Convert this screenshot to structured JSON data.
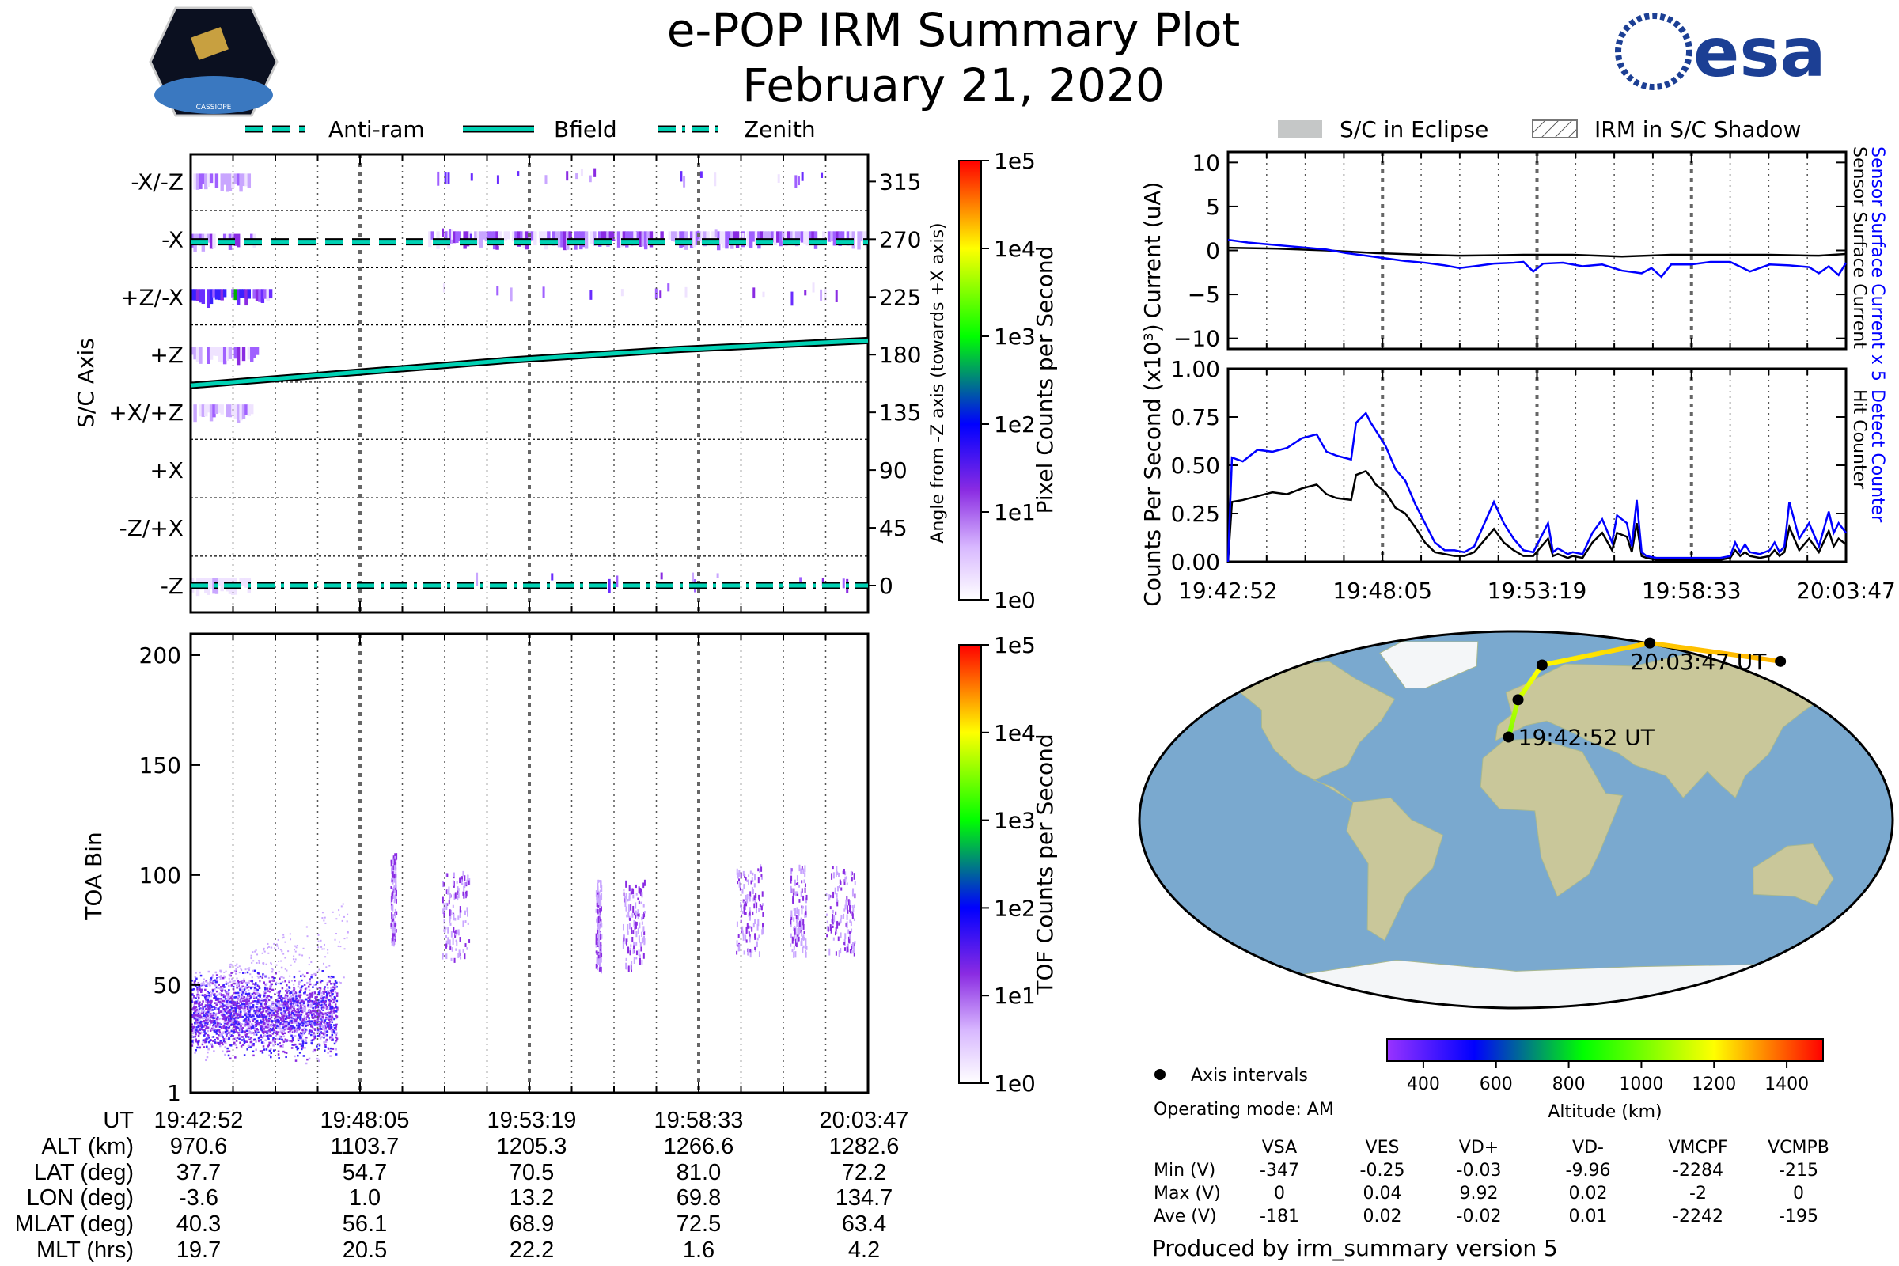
{
  "header": {
    "title": "e-POP IRM Summary Plot",
    "date": "February 21, 2020",
    "left_logo": "CASSIOPE",
    "right_logo": "esa"
  },
  "colors": {
    "antiram": "#00d2b4",
    "bfield": "#00d2b4",
    "detect": "#0000ff",
    "hit": "#000000",
    "track_start": "#7fff00",
    "track_end": "#ffa500",
    "ocean": "#7aa9cf",
    "land": "#c9c79a"
  },
  "legend_left": [
    {
      "label": "Anti-ram",
      "style": "dashed"
    },
    {
      "label": "Bfield",
      "style": "solid"
    },
    {
      "label": "Zenith",
      "style": "dashdot"
    }
  ],
  "legend_right": [
    {
      "label": "S/C in Eclipse",
      "style": "filled-gray"
    },
    {
      "label": "IRM in S/C Shadow",
      "style": "hatched"
    }
  ],
  "chart_data": [
    {
      "type": "heatmap",
      "name": "pixel-spectrogram",
      "ylabel": "S/C Axis",
      "y2label": "Angle from -Z axis (towards +X axis)",
      "ylim": [
        -15,
        330
      ],
      "categories": [
        "-X/-Z",
        "-X",
        "+Z/-X",
        "+Z",
        "+X/+Z",
        "+X",
        "-Z/+X",
        "-Z"
      ],
      "angles": [
        315,
        270,
        225,
        180,
        135,
        90,
        45,
        0
      ],
      "colorbar": {
        "label": "Pixel Counts per Second",
        "ticks": [
          "1e5",
          "1e4",
          "1e3",
          "1e2",
          "1e1",
          "1e0"
        ],
        "scale": "log",
        "range": [
          1,
          100000
        ]
      },
      "lines": {
        "antiram": {
          "t": [
            0,
            1255
          ],
          "angle": [
            268,
            268
          ]
        },
        "bfield": {
          "t": [
            0,
            300,
            600,
            900,
            1255
          ],
          "angle": [
            156,
            166,
            176,
            184,
            191
          ]
        },
        "zenith": {
          "t": [
            0,
            1255
          ],
          "angle": [
            0,
            0
          ]
        }
      }
    },
    {
      "type": "heatmap",
      "name": "tof-spectrogram",
      "ylabel": "TOA Bin",
      "ylim": [
        1,
        210
      ],
      "yticks": [
        1,
        50,
        100,
        150,
        200
      ],
      "colorbar": {
        "label": "TOF Counts per Second",
        "ticks": [
          "1e5",
          "1e4",
          "1e3",
          "1e2",
          "1e1",
          "1e0"
        ],
        "scale": "log",
        "range": [
          1,
          100000
        ]
      }
    },
    {
      "type": "line",
      "name": "current",
      "ylabel": "Current (uA)",
      "ylim": [
        -11.2,
        11.2
      ],
      "yticks": [
        "10",
        "5",
        "0",
        "−5",
        "−10"
      ],
      "yvals": [
        10,
        5,
        0,
        -5,
        -10
      ],
      "series": [
        {
          "name": "Sensor Surface Current x 5",
          "color": "#0000ff",
          "t": [
            0,
            40,
            80,
            120,
            160,
            200,
            240,
            280,
            320,
            360,
            400,
            440,
            470,
            500,
            540,
            580,
            600,
            620,
            640,
            680,
            720,
            760,
            800,
            840,
            860,
            880,
            900,
            940,
            980,
            1000,
            1020,
            1060,
            1100,
            1140,
            1180,
            1200,
            1220,
            1240,
            1255
          ],
          "v": [
            1.2,
            0.9,
            0.7,
            0.5,
            0.3,
            0.1,
            -0.3,
            -0.6,
            -0.9,
            -1.2,
            -1.4,
            -1.7,
            -2.0,
            -1.8,
            -1.5,
            -1.4,
            -1.3,
            -2.4,
            -1.5,
            -1.4,
            -1.8,
            -1.6,
            -2.3,
            -2.6,
            -2.0,
            -3.0,
            -1.6,
            -1.6,
            -1.3,
            -1.3,
            -1.3,
            -2.4,
            -1.6,
            -1.7,
            -1.9,
            -2.6,
            -1.8,
            -2.8,
            -1.4
          ]
        },
        {
          "name": "Sensor Surface Current",
          "color": "#000000",
          "t": [
            0,
            100,
            200,
            300,
            400,
            470,
            600,
            700,
            800,
            900,
            1000,
            1100,
            1200,
            1255
          ],
          "v": [
            0.3,
            0.2,
            0.0,
            -0.3,
            -0.5,
            -0.6,
            -0.5,
            -0.5,
            -0.7,
            -0.5,
            -0.5,
            -0.5,
            -0.6,
            -0.4
          ]
        }
      ]
    },
    {
      "type": "line",
      "name": "counts",
      "ylabel": "Counts Per Second (x10³)",
      "ylim": [
        0,
        1
      ],
      "yticks": [
        "1.00",
        "0.75",
        "0.50",
        "0.25",
        "0.00"
      ],
      "yvals": [
        1,
        0.75,
        0.5,
        0.25,
        0
      ],
      "xticks": [
        "19:42:52",
        "19:48:05",
        "19:53:19",
        "19:58:33",
        "20:03:47"
      ],
      "series": [
        {
          "name": "Detect Counter",
          "color": "#0000ff",
          "t": [
            0,
            8,
            30,
            60,
            90,
            120,
            150,
            180,
            200,
            220,
            250,
            260,
            280,
            290,
            300,
            320,
            340,
            360,
            380,
            400,
            420,
            440,
            460,
            480,
            500,
            540,
            560,
            580,
            600,
            620,
            650,
            660,
            670,
            690,
            700,
            720,
            740,
            760,
            780,
            790,
            810,
            820,
            830,
            840,
            850,
            870,
            880,
            900,
            940,
            980,
            1000,
            1020,
            1030,
            1040,
            1050,
            1060,
            1080,
            1100,
            1110,
            1120,
            1130,
            1140,
            1160,
            1180,
            1200,
            1220,
            1230,
            1240,
            1255
          ],
          "v": [
            0,
            0.54,
            0.52,
            0.58,
            0.57,
            0.59,
            0.64,
            0.66,
            0.57,
            0.55,
            0.53,
            0.72,
            0.77,
            0.72,
            0.68,
            0.6,
            0.48,
            0.42,
            0.3,
            0.2,
            0.1,
            0.06,
            0.06,
            0.05,
            0.08,
            0.31,
            0.2,
            0.12,
            0.06,
            0.05,
            0.2,
            0.05,
            0.07,
            0.04,
            0.05,
            0.04,
            0.15,
            0.22,
            0.1,
            0.24,
            0.2,
            0.08,
            0.32,
            0.05,
            0.03,
            0.02,
            0.02,
            0.02,
            0.02,
            0.02,
            0.02,
            0.03,
            0.1,
            0.05,
            0.09,
            0.05,
            0.04,
            0.06,
            0.1,
            0.05,
            0.08,
            0.31,
            0.12,
            0.2,
            0.08,
            0.26,
            0.15,
            0.2,
            0.15
          ]
        },
        {
          "name": "Hit Counter",
          "color": "#000000",
          "t": [
            0,
            8,
            30,
            60,
            90,
            120,
            150,
            180,
            200,
            220,
            250,
            260,
            280,
            290,
            300,
            320,
            340,
            360,
            380,
            400,
            420,
            440,
            460,
            480,
            500,
            540,
            560,
            580,
            600,
            620,
            650,
            660,
            670,
            690,
            700,
            720,
            740,
            760,
            780,
            790,
            810,
            820,
            830,
            840,
            850,
            870,
            880,
            900,
            940,
            980,
            1000,
            1020,
            1030,
            1040,
            1050,
            1060,
            1080,
            1100,
            1110,
            1120,
            1130,
            1140,
            1160,
            1180,
            1200,
            1220,
            1230,
            1240,
            1255
          ],
          "v": [
            0,
            0.31,
            0.32,
            0.34,
            0.36,
            0.35,
            0.38,
            0.4,
            0.35,
            0.33,
            0.32,
            0.45,
            0.47,
            0.44,
            0.4,
            0.36,
            0.28,
            0.25,
            0.18,
            0.1,
            0.05,
            0.04,
            0.03,
            0.03,
            0.05,
            0.17,
            0.1,
            0.06,
            0.03,
            0.03,
            0.12,
            0.03,
            0.04,
            0.02,
            0.03,
            0.02,
            0.1,
            0.15,
            0.06,
            0.15,
            0.13,
            0.05,
            0.2,
            0.03,
            0.02,
            0.01,
            0.01,
            0.01,
            0.01,
            0.01,
            0.01,
            0.02,
            0.06,
            0.03,
            0.05,
            0.03,
            0.02,
            0.03,
            0.06,
            0.03,
            0.05,
            0.18,
            0.06,
            0.12,
            0.05,
            0.16,
            0.08,
            0.12,
            0.09
          ]
        }
      ]
    },
    {
      "type": "scatter",
      "name": "orbit-map",
      "points_label": "Axis intervals",
      "lon": [
        -3.6,
        1.0,
        13.2,
        69.8,
        134.7
      ],
      "lat": [
        37.7,
        54.7,
        70.5,
        81.0,
        72.2
      ],
      "start_label": "19:42:52 UT",
      "end_label": "20:03:47 UT",
      "colorbar": {
        "label": "Altitude (km)",
        "ticks": [
          "400",
          "600",
          "800",
          "1000",
          "1200",
          "1400"
        ],
        "tickvals": [
          400,
          600,
          800,
          1000,
          1200,
          1400
        ],
        "range": [
          300,
          1500
        ]
      }
    }
  ],
  "ephemeris": {
    "row_labels": [
      "UT",
      "ALT (km)",
      "LAT (deg)",
      "LON (deg)",
      "MLAT (deg)",
      "MLT (hrs)"
    ],
    "columns": [
      [
        "19:42:52",
        "970.6",
        "37.7",
        "-3.6",
        "40.3",
        "19.7"
      ],
      [
        "19:48:05",
        "1103.7",
        "54.7",
        "1.0",
        "56.1",
        "20.5"
      ],
      [
        "19:53:19",
        "1205.3",
        "70.5",
        "13.2",
        "68.9",
        "22.2"
      ],
      [
        "19:58:33",
        "1266.6",
        "81.0",
        "69.8",
        "72.5",
        "1.6"
      ],
      [
        "20:03:47",
        "1282.6",
        "72.2",
        "134.7",
        "63.4",
        "4.2"
      ]
    ]
  },
  "info": {
    "operating_mode": "Operating mode: AM",
    "voltage_headers": [
      "VSA",
      "VES",
      "VD+",
      "VD-",
      "VMCPF",
      "VCMPB"
    ],
    "voltage_rows": [
      {
        "label": "Min (V)",
        "values": [
          "-347",
          "-0.25",
          "-0.03",
          "-9.96",
          "-2284",
          "-215"
        ]
      },
      {
        "label": "Max (V)",
        "values": [
          "0",
          "0.04",
          "9.92",
          "0.02",
          "-2",
          "0"
        ]
      },
      {
        "label": "Ave (V)",
        "values": [
          "-181",
          "0.02",
          "-0.02",
          "0.01",
          "-2242",
          "-195"
        ]
      }
    ],
    "produced_by": "Produced by irm_summary version 5"
  }
}
